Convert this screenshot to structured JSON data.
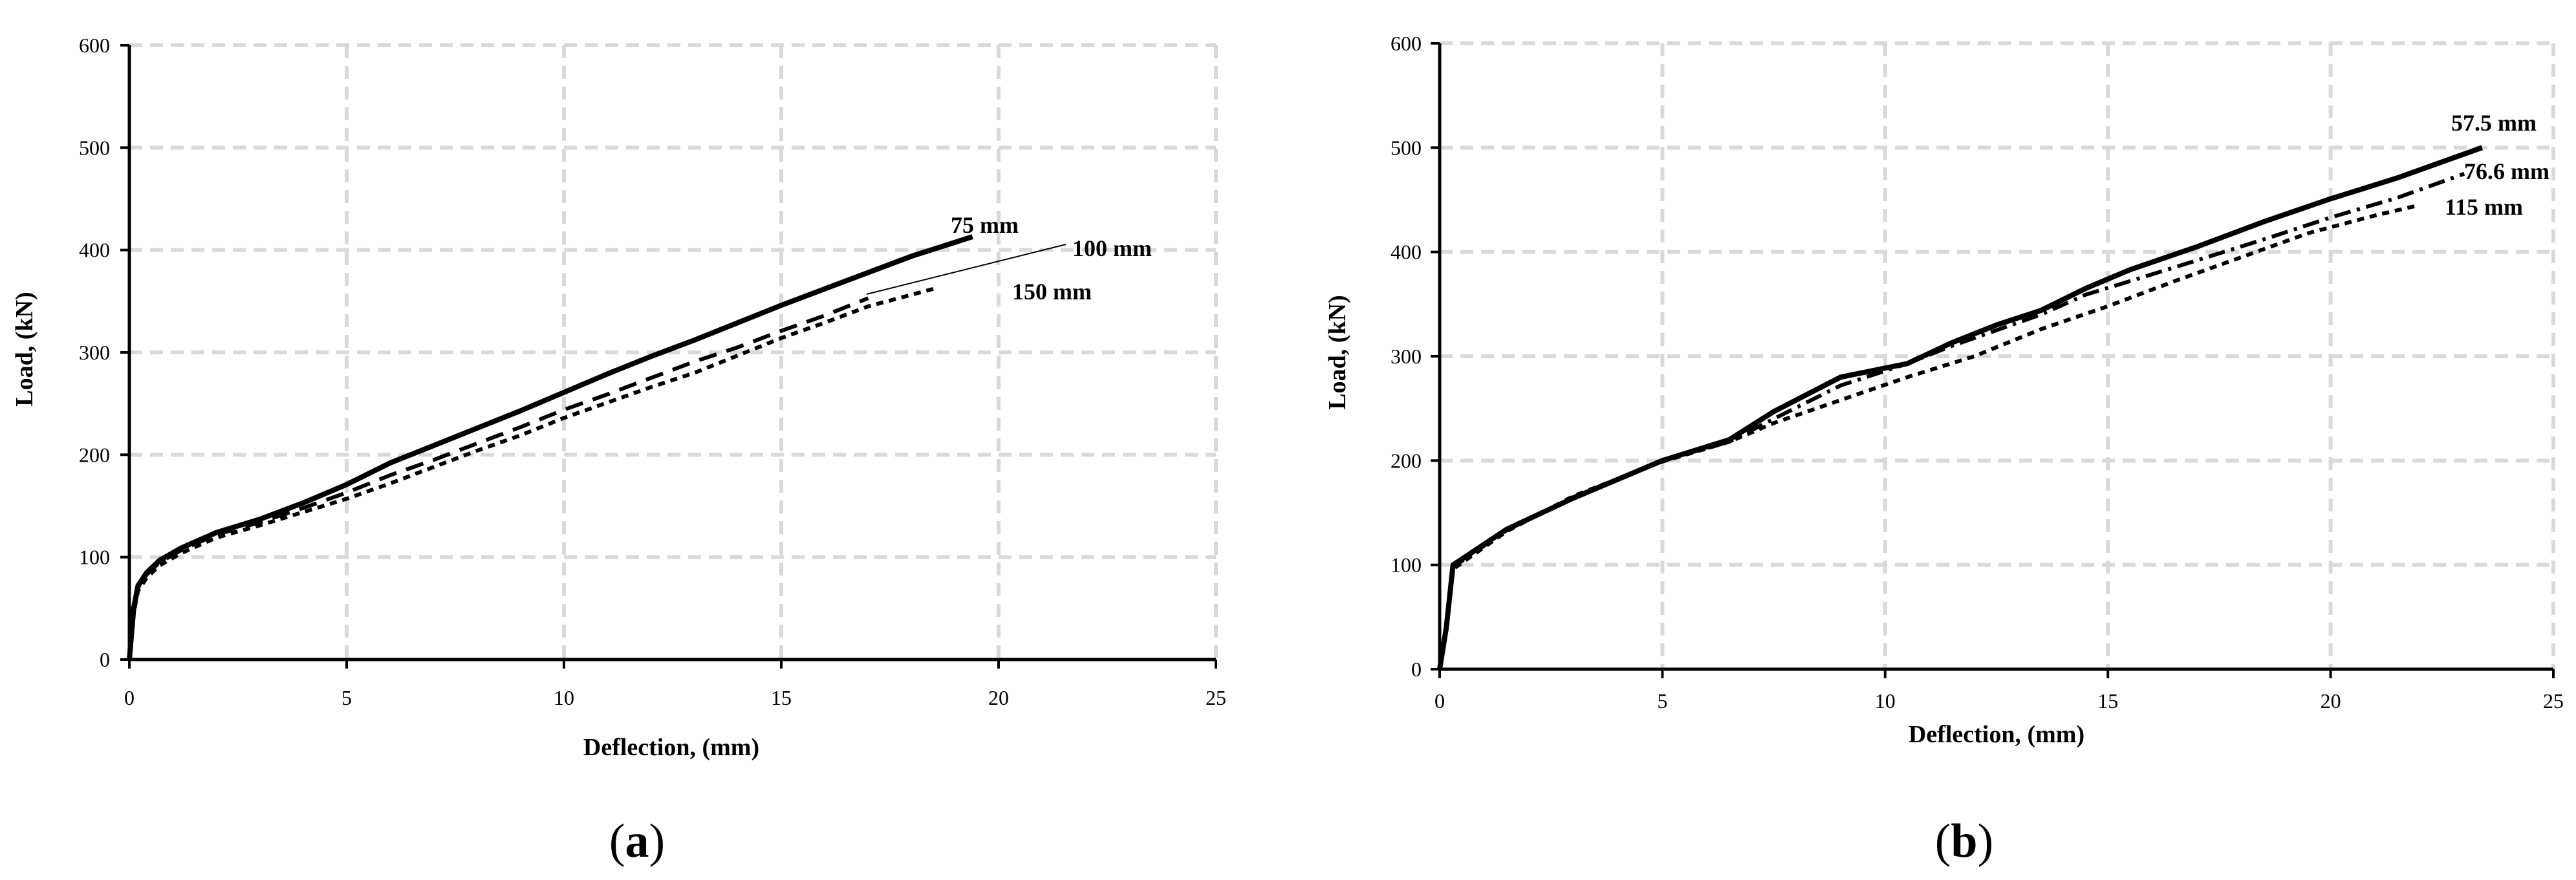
{
  "chart_data": [
    {
      "type": "line",
      "panel_label": "a",
      "xlabel": "Deflection, (mm)",
      "ylabel": "Load, (kN)",
      "xlim": [
        0,
        25
      ],
      "ylim": [
        0,
        600
      ],
      "xticks": [
        "0",
        "5",
        "10",
        "15",
        "20",
        "25"
      ],
      "yticks": [
        "0",
        "100",
        "200",
        "300",
        "400",
        "500",
        "600"
      ],
      "grid": true,
      "series": [
        {
          "name": "75 mm",
          "style": "solid",
          "x": [
            0,
            0.1,
            0.2,
            0.4,
            0.7,
            1.2,
            2,
            3,
            4,
            5,
            6,
            7,
            8,
            9,
            10,
            11,
            12,
            13,
            14,
            15,
            16,
            17,
            18,
            19.4
          ],
          "y": [
            0,
            50,
            72,
            85,
            97,
            109,
            124,
            137,
            153,
            171,
            192,
            209,
            226,
            243,
            261,
            279,
            296,
            312,
            329,
            346,
            362,
            378,
            394,
            413
          ]
        },
        {
          "name": "100 mm",
          "style": "dashed",
          "x": [
            0,
            0.1,
            0.2,
            0.4,
            0.7,
            1.2,
            2,
            3,
            4,
            5,
            6,
            7,
            8,
            9,
            10,
            11,
            12,
            13,
            14,
            15,
            16,
            17
          ],
          "y": [
            0,
            48,
            70,
            83,
            95,
            107,
            122,
            134,
            148,
            163,
            180,
            195,
            211,
            227,
            244,
            259,
            275,
            291,
            305,
            321,
            336,
            353
          ]
        },
        {
          "name": "150 mm",
          "style": "dotted",
          "x": [
            0,
            0.1,
            0.2,
            0.4,
            0.7,
            1.2,
            2,
            3,
            4,
            5,
            6,
            7,
            8,
            9,
            10,
            11,
            12,
            13,
            14,
            15,
            16,
            17,
            18.5
          ],
          "y": [
            0,
            45,
            67,
            80,
            92,
            104,
            119,
            131,
            144,
            157,
            172,
            188,
            204,
            219,
            236,
            251,
            266,
            280,
            297,
            314,
            329,
            345,
            362
          ]
        }
      ],
      "annotations": [
        "75 mm",
        "100 mm",
        "150 mm"
      ]
    },
    {
      "type": "line",
      "panel_label": "b",
      "xlabel": "Deflection, (mm)",
      "ylabel": "Load, (kN)",
      "xlim": [
        0,
        25
      ],
      "ylim": [
        0,
        600
      ],
      "xticks": [
        "0",
        "5",
        "10",
        "15",
        "20",
        "25"
      ],
      "yticks": [
        "0",
        "100",
        "200",
        "300",
        "400",
        "500",
        "600"
      ],
      "grid": true,
      "series": [
        {
          "name": "57.5 mm",
          "style": "solid",
          "x": [
            0,
            0.15,
            0.3,
            1.5,
            3,
            5,
            6.5,
            7.5,
            9,
            10.5,
            11.5,
            12.5,
            13.5,
            14.5,
            15.5,
            17,
            18.5,
            20,
            21.5,
            23.4
          ],
          "y": [
            0,
            40,
            100,
            134,
            164,
            200,
            220,
            247,
            280,
            293,
            313,
            330,
            344,
            365,
            383,
            405,
            429,
            451,
            471,
            500
          ]
        },
        {
          "name": "76.6 mm",
          "style": "dashdot",
          "x": [
            0,
            0.15,
            0.3,
            1.5,
            3,
            5,
            6.5,
            7.5,
            9,
            10.5,
            11.5,
            12.5,
            13.5,
            14.5,
            15.5,
            17,
            18.5,
            20,
            21.5,
            23
          ],
          "y": [
            0,
            38,
            98,
            133,
            165,
            200,
            218,
            240,
            272,
            293,
            310,
            325,
            340,
            359,
            372,
            392,
            412,
            433,
            452,
            475
          ]
        },
        {
          "name": "115 mm",
          "style": "dotted",
          "x": [
            0,
            0.15,
            0.3,
            1.5,
            3,
            5,
            6.5,
            7.5,
            9,
            10.5,
            12,
            13.5,
            15,
            16.5,
            18,
            19.5,
            21,
            22
          ],
          "y": [
            0,
            36,
            96,
            132,
            166,
            199,
            218,
            236,
            258,
            280,
            300,
            326,
            348,
            372,
            395,
            418,
            435,
            445
          ]
        }
      ],
      "annotations": [
        "57.5 mm",
        "76.6 mm",
        "115 mm"
      ]
    }
  ]
}
